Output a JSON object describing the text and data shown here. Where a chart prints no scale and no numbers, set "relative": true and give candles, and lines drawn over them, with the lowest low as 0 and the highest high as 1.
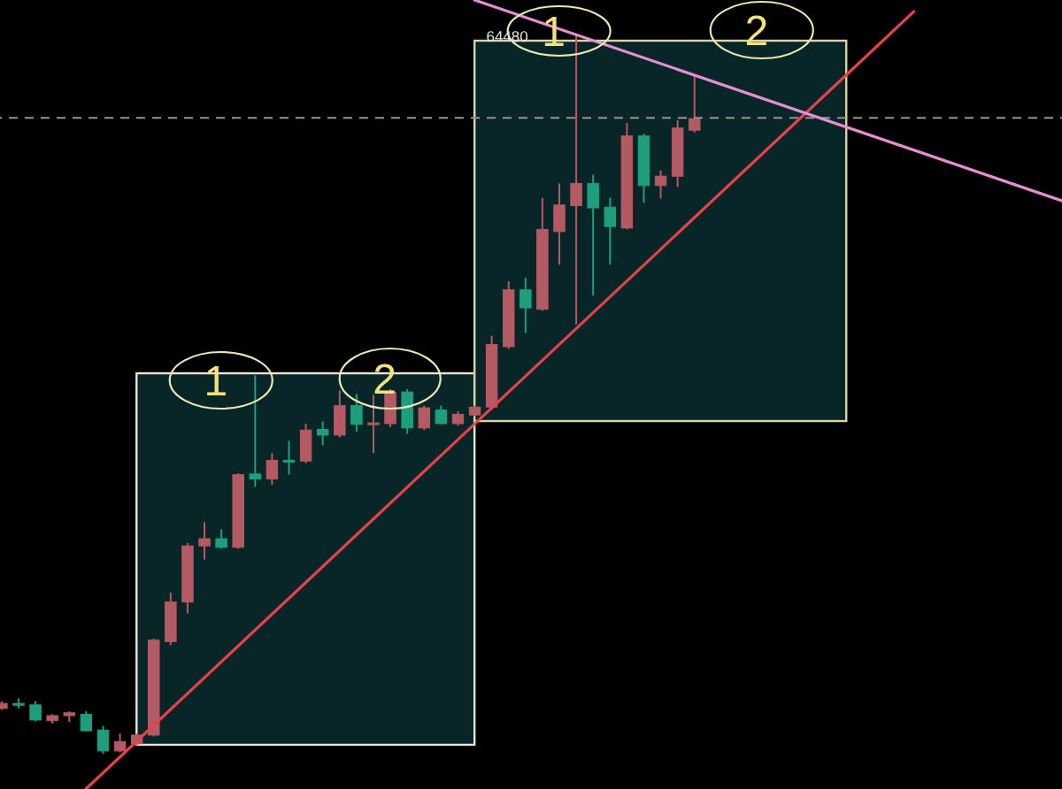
{
  "chart_data": {
    "type": "candlestick",
    "relative": true,
    "categories": [
      null,
      null,
      null,
      null,
      null,
      null,
      null,
      null,
      null,
      null,
      null,
      null,
      null,
      null,
      null,
      null,
      null,
      null,
      null,
      null,
      null,
      null,
      null,
      null,
      null,
      null,
      null,
      null,
      null,
      null,
      null,
      null,
      null,
      null,
      null,
      null,
      null,
      null,
      null,
      null,
      null,
      null,
      null,
      null,
      null,
      null,
      null,
      null,
      null,
      null,
      null,
      null,
      null,
      null,
      null,
      null,
      null,
      null,
      null,
      null,
      null,
      null,
      null,
      null
    ],
    "ohlc": [
      [
        0.063,
        0.073,
        0.061,
        0.07
      ],
      [
        0.07,
        0.077,
        0.063,
        0.068
      ],
      [
        0.068,
        0.073,
        0.045,
        0.047
      ],
      [
        0.046,
        0.055,
        0.042,
        0.053
      ],
      [
        0.053,
        0.059,
        0.044,
        0.057
      ],
      [
        0.055,
        0.059,
        0.031,
        0.032
      ],
      [
        0.033,
        0.039,
        0,
        0.004
      ],
      [
        0.004,
        0.028,
        0.002,
        0.017
      ],
      [
        0.014,
        0.028,
        0.012,
        0.026
      ],
      [
        0.026,
        0.16,
        0.024,
        0.158
      ],
      [
        0.156,
        0.224,
        0.151,
        0.211
      ],
      [
        0.211,
        0.293,
        0.195,
        0.289
      ],
      [
        0.289,
        0.322,
        0.27,
        0.299
      ],
      [
        0.299,
        0.312,
        0.285,
        0.287
      ],
      [
        0.287,
        0.39,
        0.285,
        0.388
      ],
      [
        0.389,
        0.526,
        0.371,
        0.382
      ],
      [
        0.382,
        0.418,
        0.374,
        0.408
      ],
      [
        0.408,
        0.435,
        0.388,
        0.406
      ],
      [
        0.407,
        0.459,
        0.404,
        0.45
      ],
      [
        0.451,
        0.462,
        0.429,
        0.443
      ],
      [
        0.443,
        0.505,
        0.44,
        0.484
      ],
      [
        0.484,
        0.5,
        0.448,
        0.458
      ],
      [
        0.459,
        0.499,
        0.418,
        0.46
      ],
      [
        0.459,
        0.507,
        0.454,
        0.503
      ],
      [
        0.503,
        0.507,
        0.445,
        0.453
      ],
      [
        0.453,
        0.484,
        0.45,
        0.481
      ],
      [
        0.478,
        0.484,
        0.458,
        0.459
      ],
      [
        0.459,
        0.476,
        0.456,
        0.472
      ],
      [
        0.471,
        0.484,
        0.469,
        0.482
      ],
      [
        0.482,
        0.581,
        0.478,
        0.569
      ],
      [
        0.566,
        0.657,
        0.563,
        0.645
      ],
      [
        0.645,
        0.662,
        0.585,
        0.62
      ],
      [
        0.618,
        0.773,
        0.616,
        0.729
      ],
      [
        0.726,
        0.793,
        0.68,
        0.763
      ],
      [
        0.762,
        1,
        0.597,
        0.793
      ],
      [
        0.793,
        0.805,
        0.637,
        0.759
      ],
      [
        0.76,
        0.773,
        0.68,
        0.733
      ],
      [
        0.731,
        0.877,
        0.729,
        0.859
      ],
      [
        0.859,
        0.862,
        0.766,
        0.79
      ],
      [
        0.79,
        0.811,
        0.772,
        0.803
      ],
      [
        0.803,
        0.881,
        0.788,
        0.87
      ],
      [
        0.867,
        0.943,
        0.864,
        0.883
      ],
      null,
      null,
      null,
      null,
      null,
      null,
      null,
      null,
      null,
      null,
      null,
      null,
      null,
      null,
      null,
      null,
      null,
      null,
      null,
      null,
      null,
      null
    ],
    "colors": [
      "#b45a64",
      "#1f9e7e",
      "#1f9e7e",
      "#b45a64",
      "#b45a64",
      "#1f9e7e",
      "#1f9e7e",
      "#b45a64",
      "#b45a64",
      "#b45a64",
      "#b45a64",
      "#b45a64",
      "#b45a64",
      "#1f9e7e",
      "#b45a64",
      "#1f9e7e",
      "#b45a64",
      "#1f9e7e",
      "#b45a64",
      "#1f9e7e",
      "#b45a64",
      "#1f9e7e",
      "#b45a64",
      "#b45a64",
      "#1f9e7e",
      "#b45a64",
      "#1f9e7e",
      "#b45a64",
      "#b45a64",
      "#b45a64",
      "#b45a64",
      "#1f9e7e",
      "#b45a64",
      "#b45a64",
      "#b45a64",
      "#1f9e7e",
      "#1f9e7e",
      "#b45a64",
      "#1f9e7e",
      "#b45a64",
      "#b45a64",
      "#b45a64",
      null,
      null,
      null,
      null,
      null,
      null,
      null,
      null,
      null,
      null,
      null,
      null,
      null,
      null,
      null,
      null,
      null,
      null,
      null,
      null,
      null,
      null
    ],
    "series": [
      {
        "type": "line",
        "color": "#e5434b",
        "values": [
          null,
          null,
          null,
          null,
          null,
          -0.049,
          null,
          null,
          null,
          null,
          null,
          null,
          null,
          null,
          null,
          null,
          null,
          null,
          null,
          null,
          null,
          null,
          null,
          null,
          null,
          null,
          null,
          null,
          null,
          null,
          null,
          null,
          null,
          null,
          null,
          null,
          null,
          null,
          null,
          null,
          null,
          null,
          null,
          null,
          null,
          null,
          null,
          null,
          null,
          null,
          null,
          null,
          null,
          null,
          1.032,
          null,
          null,
          null,
          null,
          null,
          null,
          null,
          null,
          null
        ]
      },
      {
        "type": "line",
        "color": "#e58fd3",
        "values": [
          null,
          null,
          null,
          null,
          null,
          null,
          null,
          null,
          null,
          null,
          null,
          null,
          null,
          null,
          null,
          null,
          null,
          null,
          null,
          null,
          null,
          null,
          null,
          null,
          null,
          null,
          null,
          null,
          1.048,
          null,
          null,
          null,
          null,
          null,
          null,
          null,
          null,
          null,
          null,
          null,
          null,
          null,
          null,
          null,
          null,
          null,
          null,
          null,
          null,
          null,
          null,
          null,
          null,
          null,
          null,
          null,
          null,
          null,
          null,
          null,
          null,
          null,
          null,
          0.767
        ]
      }
    ],
    "ref_lines": [
      {
        "axis": "y",
        "value": 0.884,
        "color": "#a3918a",
        "line_style": "dashed"
      }
    ],
    "annotations": [
      "64480",
      "1",
      "2",
      "1",
      "2"
    ]
  }
}
